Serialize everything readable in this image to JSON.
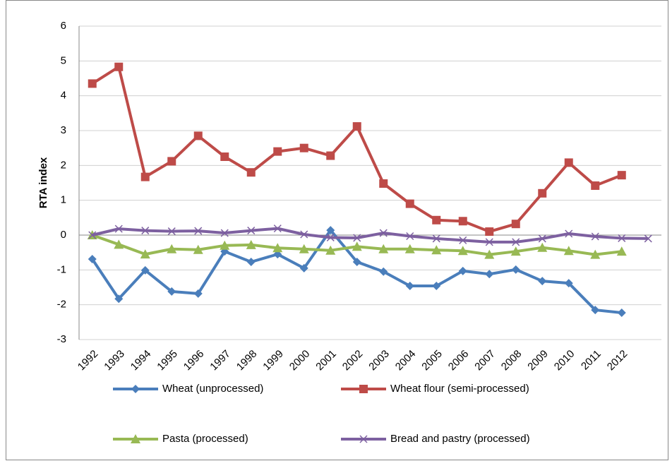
{
  "chart_data": {
    "type": "line",
    "y_label": "RTA index",
    "categories": [
      "1992",
      "1993",
      "1994",
      "1995",
      "1996",
      "1997",
      "1998",
      "1999",
      "2000",
      "2001",
      "2002",
      "2003",
      "2004",
      "2005",
      "2006",
      "2007",
      "2008",
      "2009",
      "2010",
      "2011",
      "2012",
      null
    ],
    "series": [
      {
        "name": "Wheat (unprocessed)",
        "color": "#4a7ebb",
        "marker": "diamond",
        "values": [
          -0.69,
          -1.83,
          -1.01,
          -1.62,
          -1.68,
          -0.47,
          -0.77,
          -0.55,
          -0.95,
          0.14,
          -0.77,
          -1.05,
          -1.46,
          -1.46,
          -1.03,
          -1.12,
          -0.99,
          -1.32,
          -1.38,
          -2.15,
          -2.23,
          null
        ]
      },
      {
        "name": "Wheat flour (semi-processed)",
        "color": "#be4b48",
        "marker": "square",
        "values": [
          4.35,
          4.83,
          1.67,
          2.12,
          2.85,
          2.25,
          1.8,
          2.4,
          2.5,
          2.28,
          3.12,
          1.48,
          0.9,
          0.43,
          0.4,
          0.1,
          0.32,
          1.2,
          2.08,
          1.42,
          1.72,
          null
        ]
      },
      {
        "name": "Pasta (processed)",
        "color": "#98b954",
        "marker": "triangle",
        "values": [
          0,
          -0.27,
          -0.55,
          -0.4,
          -0.42,
          -0.3,
          -0.28,
          -0.37,
          -0.4,
          -0.44,
          -0.33,
          -0.4,
          -0.4,
          -0.43,
          -0.45,
          -0.56,
          -0.47,
          -0.36,
          -0.45,
          -0.56,
          -0.47,
          null
        ]
      },
      {
        "name": "Bread and pastry (processed)",
        "color": "#7d60a0",
        "marker": "x",
        "values": [
          0,
          0.18,
          0.13,
          0.11,
          0.12,
          0.06,
          0.13,
          0.19,
          0.02,
          -0.07,
          -0.08,
          0.06,
          -0.03,
          -0.1,
          -0.15,
          -0.2,
          -0.2,
          -0.1,
          0.04,
          -0.04,
          -0.09,
          -0.1
        ]
      }
    ],
    "ylim": [
      -3,
      6
    ],
    "yticks": [
      -3,
      -2,
      -1,
      0,
      1,
      2,
      3,
      4,
      5,
      6
    ],
    "grid": true,
    "legend": "bottom"
  }
}
